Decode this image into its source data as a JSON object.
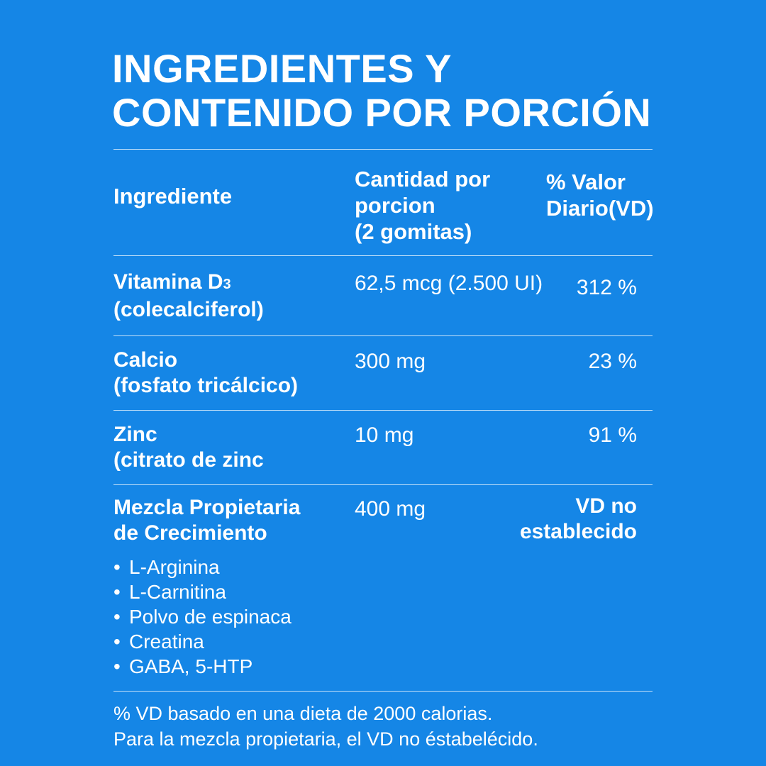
{
  "title": {
    "line1": "INGREDIENTES Y",
    "line2": "CONTENIDO POR PORCIÓN"
  },
  "header": {
    "ingredient": "Ingrediente",
    "amount_line1": "Cantidad por",
    "amount_line2": "porcion",
    "amount_line3": "(2 gomitas)",
    "dv_line1": "% Valor",
    "dv_line2": "Diario(VD)"
  },
  "rows": [
    {
      "name_line1": "Vitamina D",
      "name_sub": "3",
      "name_line2": "(colecalciferol)",
      "amount": "62,5 mcg (2.500 UI)",
      "dv": "312 %"
    },
    {
      "name_line1": "Calcio",
      "name_line2": "(fosfato tricálcico)",
      "amount": "300 mg",
      "dv": "23 %"
    },
    {
      "name_line1": "Zinc",
      "name_line2": "(citrato de zinc",
      "amount": "10 mg",
      "dv": "91 %"
    },
    {
      "name_line1": "Mezcla Propietaria",
      "name_line2": "de Crecimiento",
      "amount": "400 mg",
      "dv_line1": "VD no",
      "dv_line2": "establecido",
      "components": [
        "L-Arginina",
        "L-Carnitina",
        "Polvo de espinaca",
        "Creatina",
        "GABA, 5-HTP"
      ]
    }
  ],
  "footnote": {
    "line1": "% VD basado en una dieta de 2000 calorias.",
    "line2": "Para la mezcla propietaria, el VD no éstabelécido."
  },
  "colors": {
    "background": "#1586e6",
    "text": "#ffffff"
  }
}
